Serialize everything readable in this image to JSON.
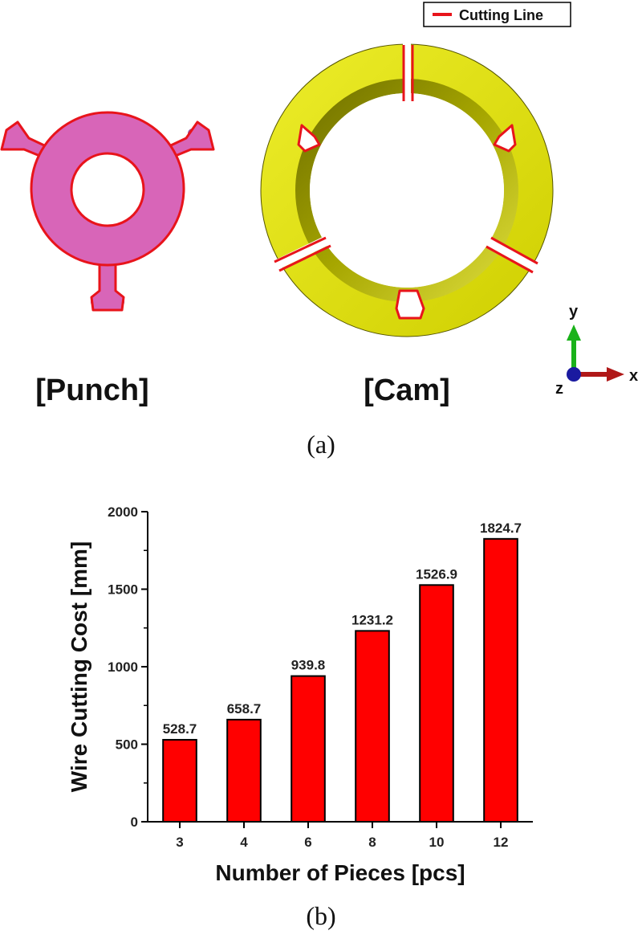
{
  "panel_a": {
    "legend_label": "Cutting Line",
    "punch_label": "[Punch]",
    "cam_label": "[Cam]",
    "axis_y": "y",
    "axis_x": "x",
    "axis_z": "z",
    "caption": "(a)",
    "colors": {
      "punch": "#d865b8",
      "cam": "#e2e200",
      "cutting_line": "#e8141b",
      "axis_y": "#1ab21a",
      "axis_x": "#b01818",
      "axis_z": "#1a1aa0"
    }
  },
  "panel_b": {
    "caption": "(b)"
  },
  "chart_data": {
    "type": "bar",
    "categories": [
      "3",
      "4",
      "6",
      "8",
      "10",
      "12"
    ],
    "values": [
      528.7,
      658.7,
      939.8,
      1231.2,
      1526.9,
      1824.7
    ],
    "value_labels": [
      "528.7",
      "658.7",
      "939.8",
      "1231.2",
      "1526.9",
      "1824.7"
    ],
    "xlabel": "Number of Pieces [pcs]",
    "ylabel": "Wire Cutting Cost [mm]",
    "ylim": [
      0,
      2000
    ],
    "yticks": [
      0,
      500,
      1000,
      1500,
      2000
    ],
    "ytick_labels": [
      "0",
      "500",
      "1000",
      "1500",
      "2000"
    ],
    "bar_color": "#ff0000",
    "grid": false,
    "legend": "none"
  }
}
